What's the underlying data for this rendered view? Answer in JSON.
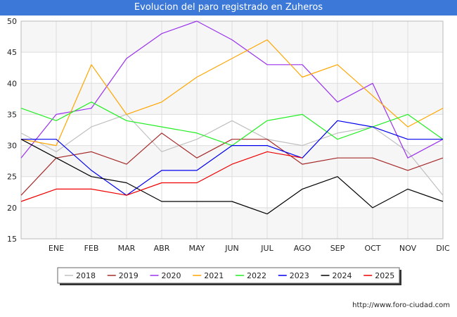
{
  "chart_data": {
    "type": "line",
    "title": "Evolucion del paro registrado en Zuheros",
    "xlabel": "",
    "ylabel": "",
    "categories": [
      "",
      "ENE",
      "FEB",
      "MAR",
      "ABR",
      "MAY",
      "JUN",
      "JUL",
      "AGO",
      "SEP",
      "OCT",
      "NOV",
      "DIC"
    ],
    "ylim": [
      15,
      50
    ],
    "yticks": [
      15,
      20,
      25,
      30,
      35,
      40,
      45,
      50
    ],
    "grid": true,
    "legend_position": "bottom",
    "series": [
      {
        "name": "2018",
        "color": "#c0c0c0",
        "values": [
          32,
          29,
          33,
          35,
          29,
          31,
          34,
          31,
          30,
          32,
          33,
          29,
          22
        ]
      },
      {
        "name": "2019",
        "color": "#a52a2a",
        "values": [
          22,
          28,
          29,
          27,
          32,
          28,
          31,
          31,
          27,
          28,
          28,
          26,
          28
        ]
      },
      {
        "name": "2020",
        "color": "#9a32ee",
        "values": [
          28,
          35,
          36,
          44,
          48,
          50,
          47,
          43,
          43,
          37,
          40,
          28,
          31
        ]
      },
      {
        "name": "2021",
        "color": "#ffa500",
        "values": [
          31,
          30,
          43,
          35,
          37,
          41,
          44,
          47,
          41,
          43,
          38,
          33,
          36
        ]
      },
      {
        "name": "2022",
        "color": "#22ee22",
        "values": [
          36,
          34,
          37,
          34,
          33,
          32,
          30,
          34,
          35,
          31,
          33,
          35,
          31
        ]
      },
      {
        "name": "2023",
        "color": "#0000ee",
        "values": [
          31,
          31,
          26,
          22,
          26,
          26,
          30,
          30,
          28,
          34,
          33,
          31,
          31
        ]
      },
      {
        "name": "2024",
        "color": "#000000",
        "values": [
          31,
          28,
          25,
          24,
          21,
          21,
          21,
          19,
          23,
          25,
          20,
          23,
          21
        ]
      },
      {
        "name": "2025",
        "color": "#ee0000",
        "values": [
          21,
          23,
          23,
          22,
          24,
          24,
          27,
          29,
          28,
          null,
          null,
          null,
          null
        ]
      }
    ]
  },
  "footer": {
    "credit": "http://www.foro-ciudad.com"
  }
}
